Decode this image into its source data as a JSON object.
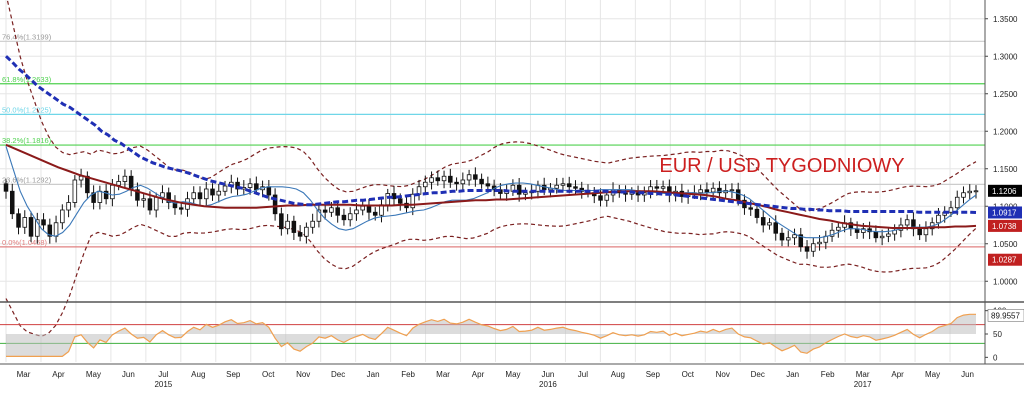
{
  "title": "EUR / USD TYGODNIOWY",
  "colors": {
    "title": "#cc1f1f",
    "candle_up": "#ffffff",
    "candle_down": "#111111",
    "ma_long": "#1f2fb4",
    "ma_mid": "#8b1a1a",
    "ma_short": "#3b78b8",
    "bollinger": "#7a2020",
    "ma_fast": "#3cb44b",
    "fib_green": "#4fd14f",
    "fib_cyan": "#6fd6e8",
    "fib_red": "#e08080",
    "fib_gray": "#cccccc",
    "rsi_fill": "#c0c0c0",
    "rsi_line": "#f0a050",
    "rsi_neg": "#f2a090"
  },
  "chart_data": {
    "type": "candlestick",
    "price_axis": {
      "ylim": [
        0.975,
        1.375
      ],
      "ticks": [
        "1.3500",
        "1.3000",
        "1.2500",
        "1.2000",
        "1.1500",
        "1.1000",
        "1.0500",
        "1.0000"
      ]
    },
    "indicator_axis": {
      "ylim": [
        -10,
        110
      ],
      "ticks": [
        "100",
        "50",
        "0"
      ],
      "levels": [
        70,
        30
      ]
    },
    "fib_levels": [
      {
        "label": "76.4%(1.3199)",
        "value": 1.3199,
        "color": "gray"
      },
      {
        "label": "61.8%(1.2633)",
        "value": 1.2633,
        "color": "green"
      },
      {
        "label": "50.0%(1.2225)",
        "value": 1.2225,
        "color": "cyan"
      },
      {
        "label": "38.2%(1.1816)",
        "value": 1.1816,
        "color": "green"
      },
      {
        "label": "23.6%(1.1292)",
        "value": 1.1292,
        "color": "gray"
      },
      {
        "label": "0.0%(1.0458)",
        "value": 1.0458,
        "color": "red"
      }
    ],
    "price_tags": [
      {
        "label": "1.1206",
        "value": 1.1206,
        "bg": "#000000",
        "fg": "#ffffff"
      },
      {
        "label": "1.0917",
        "value": 1.0917,
        "bg": "#1f2fb4",
        "fg": "#ffffff"
      },
      {
        "label": "1.0738",
        "value": 1.0738,
        "bg": "#c02020",
        "fg": "#ffffff"
      },
      {
        "label": "1.0287",
        "value": 1.0287,
        "bg": "#c02020",
        "fg": "#ffffff"
      }
    ],
    "indicator_tag": {
      "label": "89.9557",
      "value": 89.9557
    },
    "months": [
      "Mar",
      "Apr",
      "May",
      "Jun",
      "Jul",
      "Aug",
      "Sep",
      "Oct",
      "Nov",
      "Dec",
      "Jan",
      "Feb",
      "Mar",
      "Apr",
      "May",
      "Jun",
      "Jul",
      "Aug",
      "Sep",
      "Oct",
      "Nov",
      "Dec",
      "Jan",
      "Feb",
      "Mar",
      "Apr",
      "May",
      "Jun"
    ],
    "years": [
      "2015",
      "2016",
      "2017"
    ],
    "close": [
      1.12,
      1.09,
      1.072,
      1.085,
      1.06,
      1.082,
      1.075,
      1.06,
      1.078,
      1.095,
      1.105,
      1.135,
      1.14,
      1.118,
      1.105,
      1.12,
      1.11,
      1.128,
      1.133,
      1.14,
      1.122,
      1.108,
      1.11,
      1.095,
      1.112,
      1.118,
      1.105,
      1.098,
      1.096,
      1.11,
      1.118,
      1.11,
      1.123,
      1.115,
      1.12,
      1.127,
      1.132,
      1.123,
      1.125,
      1.13,
      1.122,
      1.126,
      1.115,
      1.09,
      1.07,
      1.08,
      1.065,
      1.06,
      1.072,
      1.08,
      1.095,
      1.092,
      1.098,
      1.088,
      1.082,
      1.09,
      1.095,
      1.1,
      1.092,
      1.088,
      1.102,
      1.117,
      1.11,
      1.104,
      1.098,
      1.116,
      1.126,
      1.132,
      1.138,
      1.134,
      1.14,
      1.132,
      1.13,
      1.135,
      1.142,
      1.136,
      1.13,
      1.127,
      1.122,
      1.117,
      1.12,
      1.128,
      1.116,
      1.118,
      1.12,
      1.128,
      1.122,
      1.124,
      1.128,
      1.13,
      1.126,
      1.124,
      1.12,
      1.118,
      1.114,
      1.108,
      1.115,
      1.122,
      1.118,
      1.116,
      1.118,
      1.115,
      1.118,
      1.126,
      1.124,
      1.126,
      1.115,
      1.12,
      1.113,
      1.116,
      1.118,
      1.122,
      1.119,
      1.124,
      1.118,
      1.121,
      1.122,
      1.108,
      1.098,
      1.096,
      1.085,
      1.075,
      1.078,
      1.064,
      1.055,
      1.058,
      1.062,
      1.046,
      1.04,
      1.05,
      1.052,
      1.06,
      1.068,
      1.072,
      1.078,
      1.07,
      1.065,
      1.07,
      1.066,
      1.058,
      1.06,
      1.063,
      1.068,
      1.075,
      1.082,
      1.07,
      1.062,
      1.07,
      1.078,
      1.088,
      1.092,
      1.098,
      1.112,
      1.118,
      1.12,
      1.1206
    ],
    "ma_long": [
      1.3,
      1.292,
      1.283,
      1.276,
      1.268,
      1.26,
      1.254,
      1.248,
      1.242,
      1.236,
      1.232,
      1.226,
      1.22,
      1.214,
      1.208,
      1.2,
      1.195,
      1.188,
      1.184,
      1.178,
      1.172,
      1.166,
      1.162,
      1.158,
      1.155,
      1.152,
      1.15,
      1.148,
      1.146,
      1.143,
      1.14,
      1.137,
      1.134,
      1.132,
      1.13,
      1.128,
      1.126,
      1.124,
      1.121,
      1.118,
      1.115,
      1.112,
      1.11,
      1.108,
      1.106,
      1.104,
      1.103,
      1.102,
      1.102,
      1.103,
      1.104,
      1.105,
      1.106,
      1.106,
      1.107,
      1.108,
      1.108,
      1.109,
      1.11,
      1.111,
      1.112,
      1.112,
      1.113,
      1.114,
      1.115,
      1.116,
      1.117,
      1.118,
      1.118,
      1.119,
      1.12,
      1.12,
      1.121,
      1.121,
      1.121,
      1.121,
      1.121,
      1.121,
      1.121,
      1.12,
      1.12,
      1.12,
      1.12,
      1.12,
      1.12,
      1.12,
      1.12,
      1.12,
      1.12,
      1.12,
      1.12,
      1.12,
      1.12,
      1.12,
      1.12,
      1.119,
      1.119,
      1.119,
      1.119,
      1.118,
      1.118,
      1.117,
      1.117,
      1.116,
      1.116,
      1.115,
      1.114,
      1.113,
      1.112,
      1.111,
      1.11,
      1.109,
      1.108,
      1.107,
      1.106,
      1.105,
      1.104,
      1.103,
      1.102,
      1.101,
      1.1,
      1.099,
      1.098,
      1.097,
      1.097,
      1.096,
      1.096,
      1.095,
      1.095,
      1.094,
      1.094,
      1.094,
      1.093,
      1.093,
      1.093,
      1.093,
      1.093,
      1.093,
      1.093,
      1.093,
      1.093,
      1.093,
      1.093,
      1.092,
      1.092,
      1.092,
      1.092,
      1.092,
      1.092,
      1.092,
      1.092,
      1.092,
      1.0917
    ],
    "ma_mid": [
      1.182,
      1.176,
      1.17,
      1.164,
      1.158,
      1.152,
      1.147,
      1.142,
      1.138,
      1.134,
      1.13,
      1.126,
      1.122,
      1.118,
      1.114,
      1.11,
      1.107,
      1.104,
      1.102,
      1.1,
      1.099,
      1.098,
      1.098,
      1.098,
      1.098,
      1.099,
      1.1,
      1.101,
      1.101,
      1.102,
      1.102,
      1.102,
      1.102,
      1.102,
      1.101,
      1.101,
      1.101,
      1.101,
      1.102,
      1.102,
      1.103,
      1.104,
      1.105,
      1.106,
      1.107,
      1.108,
      1.108,
      1.109,
      1.109,
      1.11,
      1.111,
      1.112,
      1.113,
      1.114,
      1.115,
      1.116,
      1.117,
      1.118,
      1.119,
      1.12,
      1.12,
      1.12,
      1.12,
      1.119,
      1.118,
      1.117,
      1.116,
      1.115,
      1.113,
      1.11,
      1.108,
      1.105,
      1.102,
      1.099,
      1.095,
      1.092,
      1.089,
      1.086,
      1.083,
      1.081,
      1.078,
      1.076,
      1.074,
      1.073,
      1.072,
      1.071,
      1.071,
      1.071,
      1.071,
      1.072,
      1.072,
      1.073,
      1.073,
      1.0738
    ],
    "ma_fast": [
      1.18,
      1.15,
      1.12,
      1.1,
      1.085,
      1.07,
      1.062,
      1.06,
      1.065,
      1.075,
      1.09,
      1.105,
      1.115,
      1.12,
      1.118,
      1.115,
      1.116,
      1.12,
      1.125,
      1.128,
      1.124,
      1.118,
      1.112,
      1.106,
      1.104,
      1.106,
      1.105,
      1.102,
      1.1,
      1.102,
      1.106,
      1.11,
      1.113,
      1.114,
      1.116,
      1.12,
      1.124,
      1.126,
      1.126,
      1.126,
      1.125,
      1.123,
      1.118,
      1.108,
      1.095,
      1.084,
      1.076,
      1.07,
      1.068,
      1.07,
      1.075,
      1.08,
      1.084,
      1.086,
      1.087,
      1.088,
      1.09,
      1.092,
      1.094,
      1.095,
      1.098,
      1.102,
      1.106,
      1.108,
      1.108,
      1.108,
      1.11,
      1.114,
      1.118,
      1.124,
      1.128,
      1.13,
      1.131,
      1.131,
      1.13,
      1.128,
      1.126,
      1.124,
      1.122,
      1.121,
      1.121,
      1.121,
      1.121,
      1.121,
      1.122,
      1.122,
      1.122,
      1.122,
      1.122,
      1.121,
      1.12,
      1.119,
      1.118,
      1.117,
      1.117,
      1.117,
      1.118,
      1.118,
      1.117,
      1.118,
      1.118,
      1.12,
      1.12,
      1.118,
      1.115,
      1.11,
      1.102,
      1.094,
      1.086,
      1.078,
      1.072,
      1.066,
      1.06,
      1.058,
      1.058,
      1.058,
      1.06,
      1.063,
      1.067,
      1.07,
      1.07,
      1.069,
      1.067,
      1.066,
      1.066,
      1.067,
      1.069,
      1.071,
      1.072,
      1.072,
      1.072,
      1.074,
      1.078,
      1.085,
      1.092,
      1.1,
      1.108,
      1.115
    ]
  }
}
